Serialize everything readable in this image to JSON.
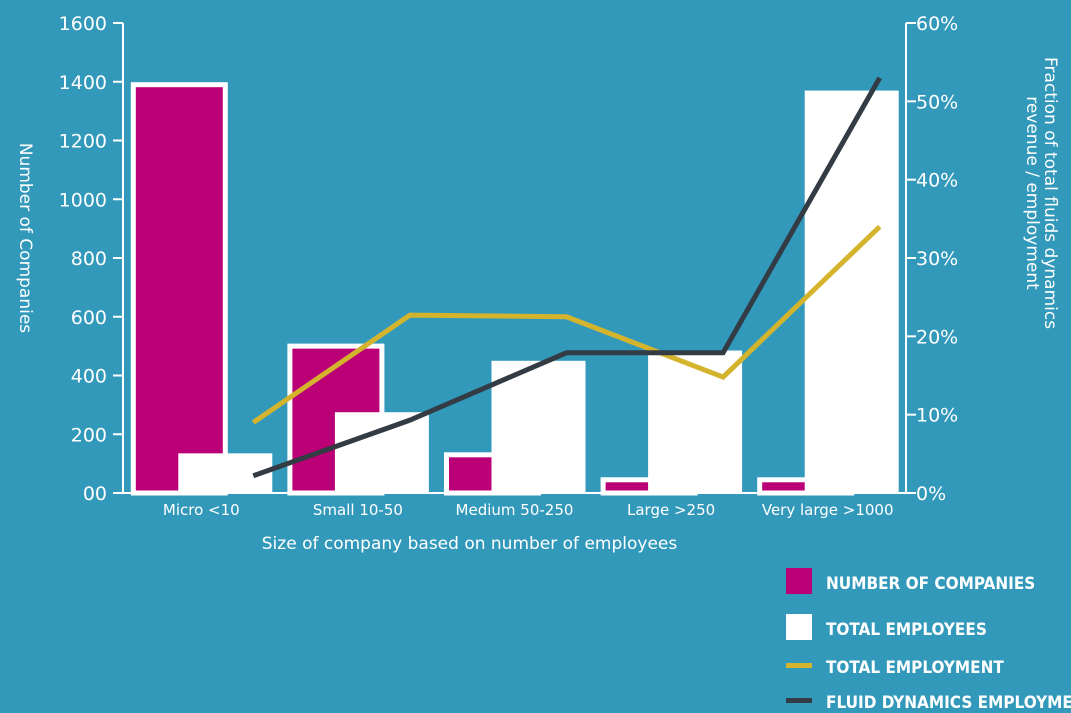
{
  "chart_data": {
    "type": "bar",
    "categories": [
      "Micro <10",
      "Small 10-50",
      "Medium 50-250",
      "Large >250",
      "Very large >1000"
    ],
    "series": [
      {
        "name": "NUMBER OF COMPANIES",
        "kind": "bar",
        "axis": "left",
        "values": [
          1390,
          500,
          130,
          45,
          45
        ],
        "color": "#bb0077"
      },
      {
        "name": "TOTAL EMPLOYEES",
        "kind": "bar",
        "axis": "left",
        "values": [
          135,
          275,
          450,
          485,
          1370
        ],
        "color": "#ffffff"
      },
      {
        "name": "TOTAL EMPLOYMENT",
        "kind": "line",
        "axis": "right",
        "values": [
          9,
          22.7,
          22.5,
          14.8,
          34
        ],
        "color": "#d4b42c"
      },
      {
        "name": "FLUID DYNAMICS EMPLOYMENT",
        "kind": "line",
        "axis": "right",
        "values": [
          2.2,
          9.3,
          17.9,
          17.9,
          53
        ],
        "color": "#333b44"
      }
    ],
    "left_axis": {
      "label": "Number of Companies",
      "ylim": [
        0,
        1600
      ],
      "ticks": [
        "00",
        "200",
        "400",
        "600",
        "800",
        "1000",
        "1200",
        "1400",
        "1600"
      ]
    },
    "right_axis": {
      "label_lines": [
        "Fraction of total fluids dynamics",
        "revenue / employment"
      ],
      "ylim": [
        0,
        60
      ],
      "ticks": [
        "0%",
        "10%",
        "20%",
        "30%",
        "40%",
        "50%",
        "60%"
      ]
    },
    "xlabel": "Size of company based on number of employees",
    "legend_placement": "bottom-right",
    "grid": false,
    "background": "#3399bb"
  }
}
